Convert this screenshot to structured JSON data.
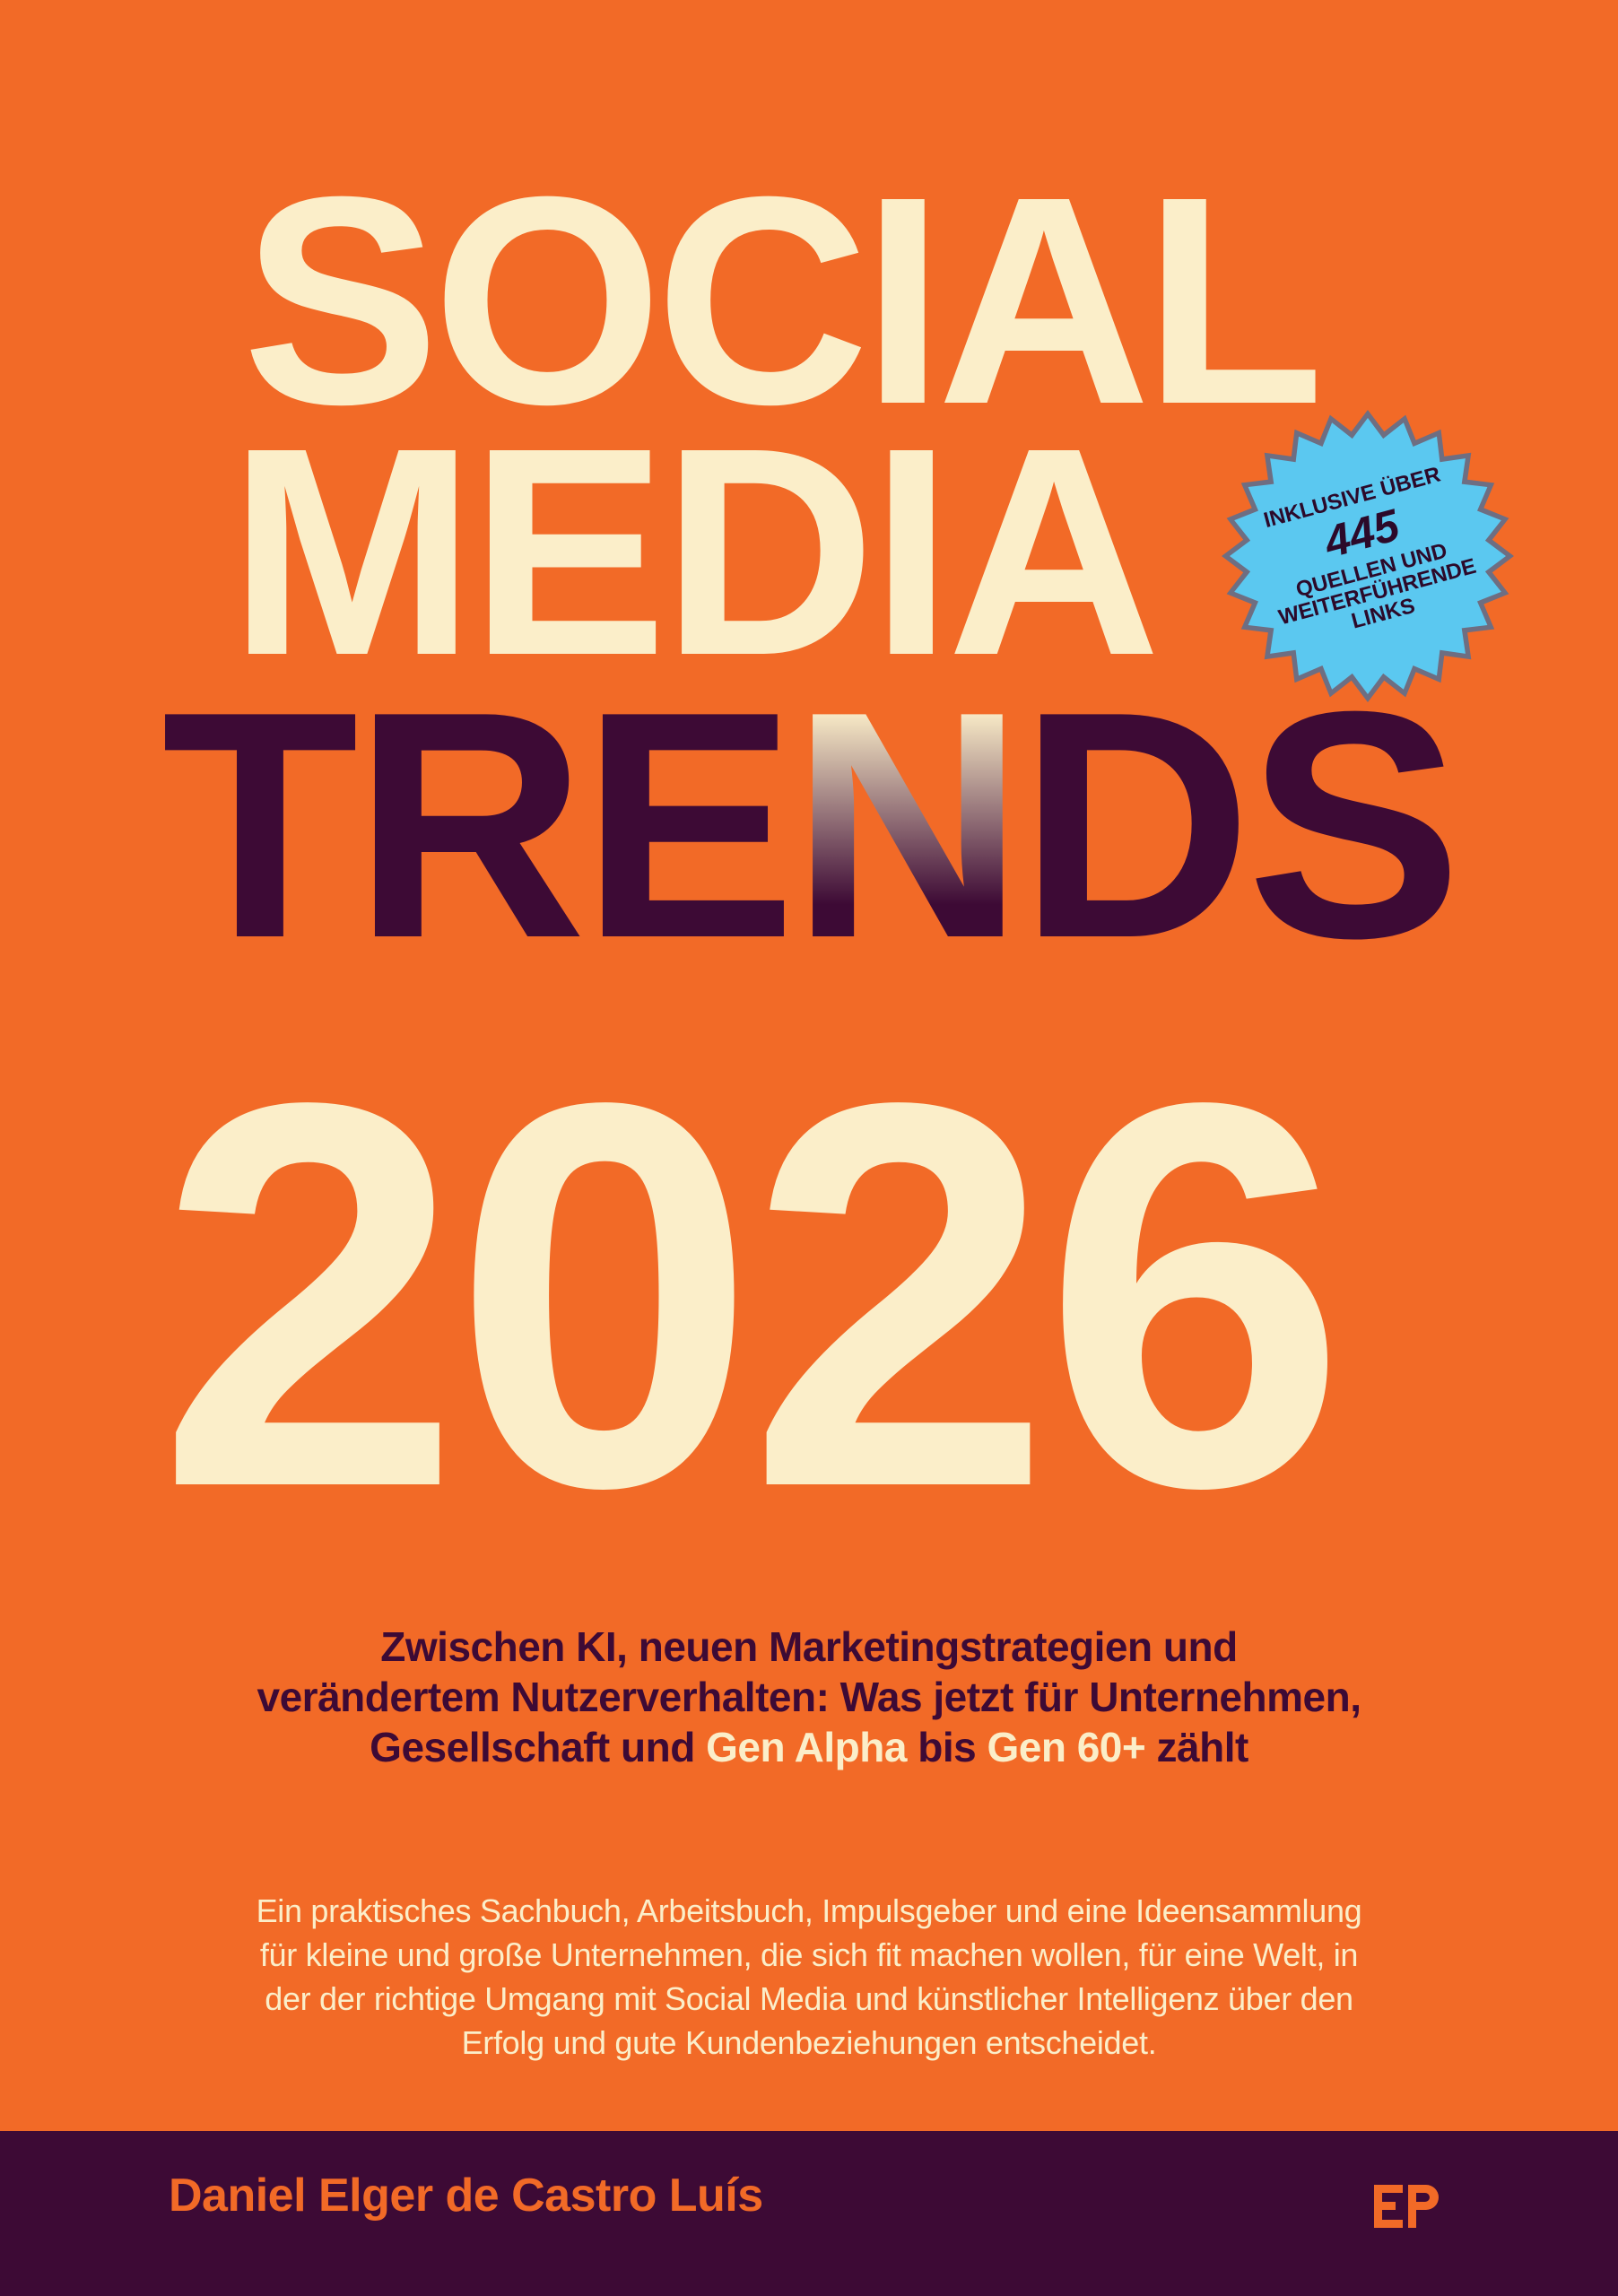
{
  "cover": {
    "title_social": "SOCIAL",
    "title_media": "MEDIA",
    "title_trends_pre": "TRE",
    "title_trends_n": "N",
    "title_trends_post": "DS",
    "title_year": "2026",
    "badge": {
      "line1": "INKLUSIVE ÜBER",
      "number": "445",
      "line2": "QUELLEN UND",
      "line3": "WEITERFÜHRENDE",
      "line4": "LINKS"
    },
    "subtitle": {
      "line1": "Zwischen KI, neuen Marketingstrategien und",
      "line2": "verändertem Nutzerverhalten: Was jetzt für Unternehmen,",
      "line3_a": "Gesellschaft und ",
      "line3_hl1": "Gen Alpha",
      "line3_b": " bis ",
      "line3_hl2": "Gen 60+",
      "line3_c": " zählt"
    },
    "blurb": {
      "line1": "Ein praktisches Sachbuch, Arbeitsbuch, Impulsgeber und eine Ideensammlung",
      "line2": "für kleine und große Unternehmen, die sich fit machen wollen, für eine Welt, in",
      "line3": "der der richtige Umgang mit Social Media und künstlicher Intelligenz über den",
      "line4": "Erfolg und gute Kundenbeziehungen entscheidet."
    },
    "author": "Daniel Elger de Castro Luís",
    "publisher_logo_icon": "ep-logo-icon",
    "colors": {
      "background": "#f26a27",
      "cream": "#fbeec9",
      "plum": "#3d0a35",
      "badge_blue": "#5bc8f0",
      "badge_rim": "#6e6e82"
    }
  }
}
